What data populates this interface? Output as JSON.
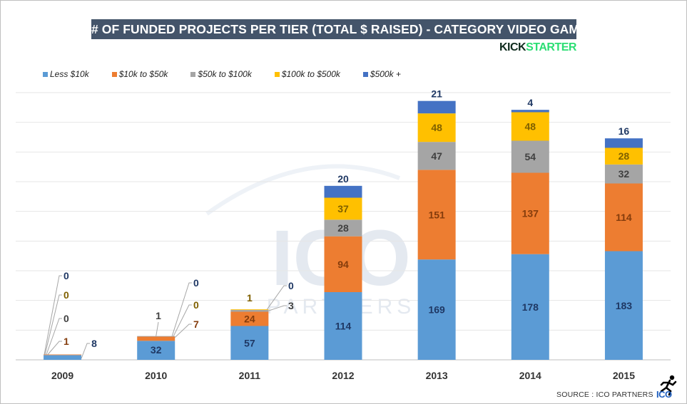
{
  "title": "# OF FUNDED PROJECTS PER TIER (TOTAL $ RAISED) - CATEGORY VIDEO GAMES",
  "brand": {
    "part1": "KICK",
    "part2": "STARTER"
  },
  "source": "SOURCE : ICO PARTNERS",
  "logo_text": "ICO",
  "watermark": {
    "big": "ICO",
    "small": "PARTNERS"
  },
  "colors": {
    "less_10k": "#5b9bd5",
    "10k_50k": "#ed7d31",
    "50k_100k": "#a5a5a5",
    "100k_500k": "#ffc000",
    "500k_plus": "#4472c4",
    "title_bg": "#44546a"
  },
  "chart_data": {
    "type": "bar",
    "stacked": true,
    "categories": [
      "2009",
      "2010",
      "2011",
      "2012",
      "2013",
      "2014",
      "2015"
    ],
    "series": [
      {
        "name": "Less $10k",
        "color": "#5b9bd5",
        "label_color": "#1f3864",
        "values": [
          8,
          32,
          57,
          114,
          169,
          178,
          183
        ]
      },
      {
        "name": "$10k to $50k",
        "color": "#ed7d31",
        "label_color": "#843c0c",
        "values": [
          1,
          7,
          24,
          94,
          151,
          137,
          114
        ]
      },
      {
        "name": "$50k to $100k",
        "color": "#a5a5a5",
        "label_color": "#404040",
        "values": [
          0,
          1,
          3,
          28,
          47,
          54,
          32
        ]
      },
      {
        "name": "$100k to $500k",
        "color": "#ffc000",
        "label_color": "#7f6000",
        "values": [
          0,
          0,
          1,
          37,
          48,
          48,
          28
        ]
      },
      {
        "name": "$500k +",
        "color": "#4472c4",
        "label_color": "#1f3864",
        "values": [
          0,
          0,
          0,
          20,
          21,
          4,
          16
        ]
      }
    ],
    "ylim": [
      0,
      450
    ],
    "grid": true,
    "legend": "top-left",
    "xlabel": "",
    "ylabel": ""
  }
}
